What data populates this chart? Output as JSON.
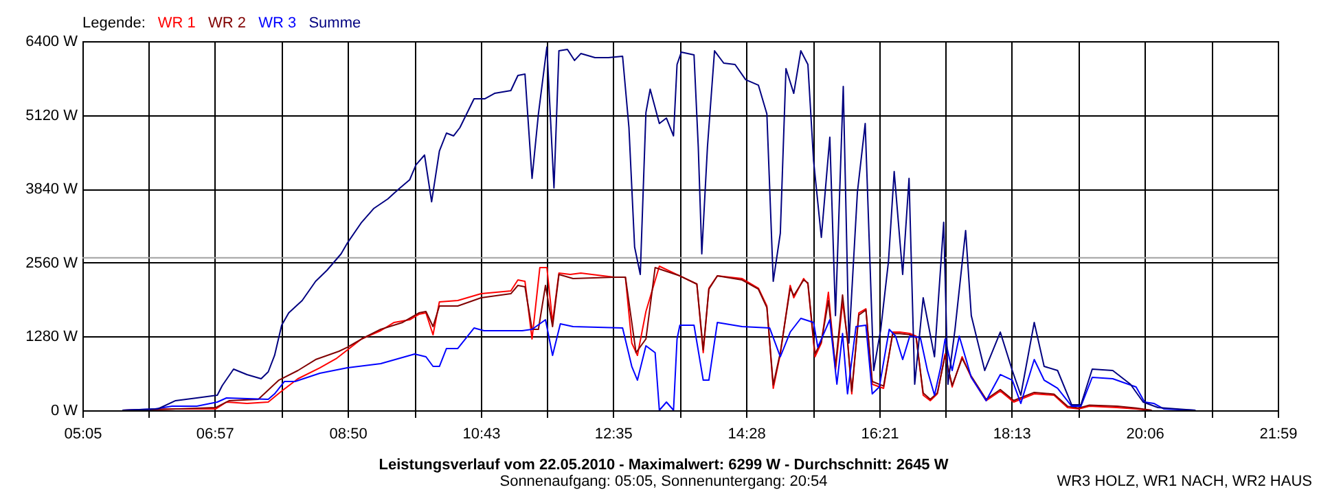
{
  "chart_data": {
    "type": "line",
    "title": "Leistungsverlauf vom 22.05.2010 - Maximalwert: 6299 W - Durchschnitt: 2645 W",
    "subtitle": "Sonnenaufgang: 05:05, Sonnenuntergang: 20:54",
    "annotations": [
      "WR3 HOLZ, WR1 NACH, WR2 HAUS"
    ],
    "legend_title": "Legende:",
    "legend": "top left",
    "grid": true,
    "xlim": [
      5.0833,
      21.9833
    ],
    "xticks": [
      {
        "value": 5.0833,
        "label": "05:05"
      },
      {
        "value": 6.0167,
        "label": null
      },
      {
        "value": 6.95,
        "label": "06:57"
      },
      {
        "value": 7.8917,
        "label": null
      },
      {
        "value": 8.8333,
        "label": "08:50"
      },
      {
        "value": 9.775,
        "label": null
      },
      {
        "value": 10.7167,
        "label": "10:43"
      },
      {
        "value": 11.65,
        "label": null
      },
      {
        "value": 12.5833,
        "label": "12:35"
      },
      {
        "value": 13.525,
        "label": null
      },
      {
        "value": 14.4667,
        "label": "14:28"
      },
      {
        "value": 15.4083,
        "label": null
      },
      {
        "value": 16.35,
        "label": "16:21"
      },
      {
        "value": 17.2833,
        "label": null
      },
      {
        "value": 18.2167,
        "label": "18:13"
      },
      {
        "value": 19.1583,
        "label": null
      },
      {
        "value": 20.1,
        "label": "20:06"
      },
      {
        "value": 21.0417,
        "label": null
      },
      {
        "value": 21.9833,
        "label": "21:59"
      }
    ],
    "ylim": [
      0,
      6400
    ],
    "yticks": [
      {
        "value": 0,
        "label": "0 W"
      },
      {
        "value": 1280,
        "label": "1280 W"
      },
      {
        "value": 2560,
        "label": "2560 W"
      },
      {
        "value": 3840,
        "label": "3840 W"
      },
      {
        "value": 5120,
        "label": "5120 W"
      },
      {
        "value": 6400,
        "label": "6400 W"
      }
    ],
    "ref_lines": [
      {
        "axis": "y",
        "value": 2645,
        "color": "#a0a0a0"
      }
    ],
    "series": [
      {
        "name": "WR 1",
        "color": "#ff0000",
        "x": [
          5.65,
          6.44,
          6.97,
          7.12,
          7.41,
          7.71,
          7.9,
          8.13,
          8.44,
          8.68,
          8.83,
          9.03,
          9.3,
          9.49,
          9.71,
          9.84,
          9.94,
          10.04,
          10.13,
          10.39,
          10.72,
          11.14,
          11.24,
          11.34,
          11.44,
          11.55,
          11.65,
          11.73,
          11.82,
          11.98,
          12.13,
          12.6,
          12.76,
          12.85,
          12.93,
          13.05,
          13.24,
          13.53,
          13.77,
          13.86,
          13.94,
          14.06,
          14.41,
          14.64,
          14.76,
          14.85,
          14.95,
          15.09,
          15.14,
          15.28,
          15.34,
          15.44,
          15.53,
          15.63,
          15.73,
          15.83,
          15.9,
          15.96,
          16.06,
          16.16,
          16.25,
          16.41,
          16.54,
          16.64,
          16.78,
          16.87,
          16.97,
          17.07,
          17.17,
          17.28,
          17.38,
          17.52,
          17.65,
          17.86,
          18.06,
          18.25,
          18.54,
          18.82,
          19.01,
          19.17,
          19.32,
          19.71,
          19.98,
          20.2
        ],
        "values": [
          0,
          24,
          24,
          143,
          119,
          143,
          333,
          547,
          737,
          904,
          1047,
          1237,
          1380,
          1523,
          1570,
          1665,
          1689,
          1308,
          1879,
          1903,
          2022,
          2070,
          2260,
          2236,
          1237,
          2474,
          2474,
          1523,
          2379,
          2355,
          2379,
          2308,
          2308,
          1166,
          952,
          1713,
          2498,
          2331,
          2189,
          999,
          2117,
          2331,
          2284,
          2117,
          1808,
          381,
          975,
          2165,
          1951,
          2284,
          2189,
          928,
          1166,
          2046,
          690,
          1879,
          1237,
          285,
          1689,
          1760,
          452,
          381,
          1356,
          1356,
          1332,
          1285,
          262,
          167,
          285,
          975,
          404,
          928,
          571,
          167,
          333,
          143,
          285,
          262,
          48,
          24,
          71,
          48,
          24,
          0
        ]
      },
      {
        "name": "WR 2",
        "color": "#800000",
        "x": [
          5.65,
          6.44,
          6.97,
          7.16,
          7.57,
          7.86,
          8.13,
          8.38,
          8.71,
          8.83,
          9.03,
          9.3,
          9.61,
          9.84,
          9.94,
          10.04,
          10.13,
          10.39,
          10.72,
          11.14,
          11.24,
          11.34,
          11.44,
          11.53,
          11.63,
          11.73,
          11.82,
          12.02,
          12.6,
          12.76,
          12.91,
          13.05,
          13.18,
          13.53,
          13.77,
          13.86,
          13.94,
          14.06,
          14.41,
          14.64,
          14.76,
          14.85,
          14.95,
          15.09,
          15.14,
          15.28,
          15.34,
          15.44,
          15.53,
          15.63,
          15.73,
          15.83,
          15.9,
          15.96,
          16.06,
          16.16,
          16.25,
          16.41,
          16.54,
          16.64,
          16.78,
          16.87,
          16.97,
          17.07,
          17.17,
          17.28,
          17.38,
          17.52,
          17.65,
          17.86,
          18.06,
          18.25,
          18.54,
          18.82,
          19.01,
          19.17,
          19.32,
          19.71,
          19.98,
          20.2
        ],
        "values": [
          0,
          24,
          48,
          167,
          190,
          523,
          690,
          880,
          1023,
          1094,
          1237,
          1404,
          1523,
          1689,
          1713,
          1451,
          1808,
          1808,
          1951,
          2022,
          2165,
          2141,
          1404,
          1404,
          2165,
          1451,
          2355,
          2284,
          2308,
          2308,
          999,
          1237,
          2474,
          2331,
          2189,
          1050,
          2100,
          2331,
          2260,
          2100,
          1780,
          440,
          1000,
          2120,
          1990,
          2260,
          2210,
          980,
          1190,
          1900,
          760,
          2000,
          1200,
          330,
          1650,
          1740,
          500,
          420,
          1330,
          1330,
          1310,
          1260,
          300,
          190,
          300,
          950,
          430,
          900,
          590,
          190,
          360,
          170,
          310,
          280,
          70,
          40,
          90,
          70,
          40,
          0
        ]
      },
      {
        "name": "WR 3",
        "color": "#0000ff",
        "x": [
          5.65,
          6.11,
          6.35,
          6.7,
          6.99,
          7.12,
          7.71,
          7.8,
          7.94,
          8.09,
          8.44,
          8.83,
          9.3,
          9.78,
          9.94,
          10.04,
          10.13,
          10.23,
          10.39,
          10.62,
          10.76,
          11.3,
          11.44,
          11.63,
          11.73,
          11.84,
          12.02,
          12.72,
          12.85,
          12.93,
          13.05,
          13.18,
          13.24,
          13.34,
          13.44,
          13.49,
          13.53,
          13.73,
          13.86,
          13.94,
          14.06,
          14.41,
          14.8,
          14.95,
          15.09,
          15.24,
          15.42,
          15.48,
          15.65,
          15.75,
          15.83,
          15.9,
          16.02,
          16.16,
          16.25,
          16.35,
          16.49,
          16.58,
          16.68,
          16.78,
          16.93,
          17.03,
          17.13,
          17.22,
          17.28,
          17.38,
          17.48,
          17.65,
          17.86,
          18.06,
          18.23,
          18.35,
          18.54,
          18.68,
          18.87,
          19.07,
          19.2,
          19.36,
          19.65,
          19.98,
          20.1,
          20.23,
          20.37,
          20.82
        ],
        "values": [
          0,
          24,
          71,
          71,
          143,
          214,
          190,
          285,
          500,
          500,
          642,
          737,
          809,
          975,
          928,
          761,
          761,
          1071,
          1071,
          1427,
          1380,
          1380,
          1404,
          1570,
          952,
          1499,
          1451,
          1427,
          761,
          523,
          1118,
          999,
          0,
          143,
          0,
          1237,
          1475,
          1475,
          523,
          523,
          1523,
          1451,
          1427,
          928,
          1356,
          1594,
          1523,
          1094,
          1570,
          452,
          1332,
          285,
          1451,
          1475,
          285,
          404,
          1404,
          1285,
          880,
          1285,
          1261,
          690,
          262,
          761,
          1237,
          690,
          1285,
          571,
          167,
          619,
          523,
          119,
          880,
          523,
          381,
          71,
          71,
          571,
          547,
          404,
          143,
          119,
          24,
          0
        ]
      },
      {
        "name": "Summe",
        "color": "#000080",
        "x": [
          5.65,
          6.15,
          6.4,
          6.7,
          6.99,
          7.06,
          7.22,
          7.41,
          7.61,
          7.71,
          7.8,
          7.9,
          8.0,
          8.19,
          8.38,
          8.54,
          8.74,
          8.83,
          9.03,
          9.2,
          9.4,
          9.55,
          9.71,
          9.8,
          9.92,
          10.02,
          10.13,
          10.23,
          10.33,
          10.42,
          10.62,
          10.77,
          10.91,
          11.14,
          11.24,
          11.34,
          11.44,
          11.53,
          11.65,
          11.75,
          11.82,
          11.94,
          12.04,
          12.13,
          12.33,
          12.52,
          12.72,
          12.81,
          12.89,
          12.97,
          13.05,
          13.11,
          13.24,
          13.34,
          13.44,
          13.49,
          13.55,
          13.73,
          13.79,
          13.84,
          13.92,
          14.02,
          14.15,
          14.31,
          14.46,
          14.64,
          14.76,
          14.85,
          14.95,
          15.03,
          15.14,
          15.24,
          15.34,
          15.42,
          15.53,
          15.65,
          15.73,
          15.84,
          15.92,
          16.04,
          16.15,
          16.27,
          16.37,
          16.48,
          16.56,
          16.68,
          16.77,
          16.85,
          16.97,
          17.13,
          17.26,
          17.32,
          17.42,
          17.57,
          17.65,
          17.84,
          18.06,
          18.23,
          18.35,
          18.54,
          18.68,
          18.87,
          19.07,
          19.2,
          19.36,
          19.65,
          19.9,
          20.08,
          20.29,
          20.82
        ],
        "values": [
          0,
          24,
          167,
          214,
          262,
          428,
          714,
          619,
          547,
          666,
          952,
          1475,
          1689,
          1903,
          2236,
          2427,
          2712,
          2902,
          3259,
          3497,
          3664,
          3830,
          3997,
          4258,
          4425,
          3616,
          4496,
          4806,
          4758,
          4901,
          5400,
          5400,
          5495,
          5543,
          5805,
          5829,
          4021,
          5139,
          6299,
          3854,
          6233,
          6257,
          6066,
          6185,
          6114,
          6114,
          6138,
          4901,
          2831,
          2355,
          5162,
          5567,
          4972,
          5067,
          4758,
          5995,
          6209,
          6162,
          4568,
          2712,
          4568,
          6233,
          6019,
          5995,
          5733,
          5638,
          5139,
          2236,
          3069,
          5924,
          5495,
          6233,
          5995,
          4330,
          2998,
          4734,
          1642,
          5614,
          1166,
          3783,
          4972,
          690,
          1404,
          2593,
          4139,
          2355,
          4021,
          452,
          1951,
          928,
          3259,
          452,
          1404,
          3116,
          1642,
          690,
          1356,
          690,
          262,
          1523,
          761,
          690,
          95,
          95,
          714,
          690,
          452,
          143,
          48,
          0
        ]
      }
    ]
  }
}
